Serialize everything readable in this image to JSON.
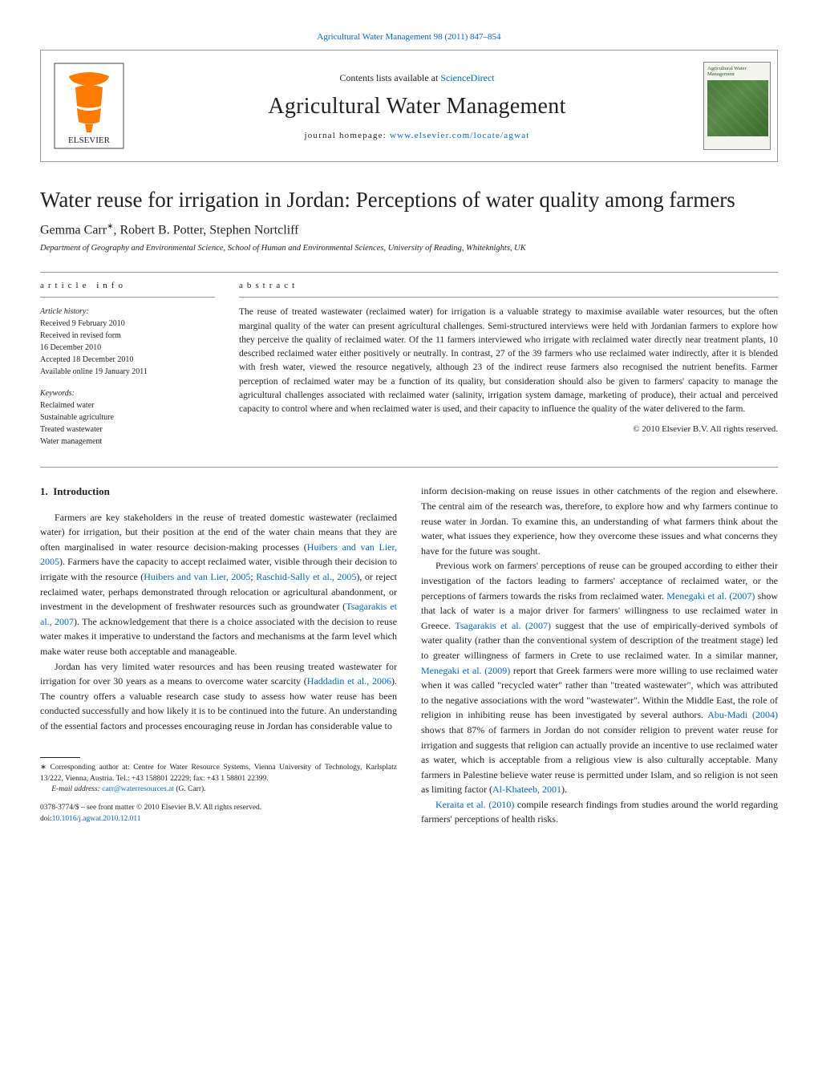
{
  "header": {
    "top_link_text": "Agricultural Water Management 98 (2011) 847–854",
    "contents_prefix": "Contents lists available at ",
    "contents_link": "ScienceDirect",
    "journal_name": "Agricultural Water Management",
    "homepage_prefix": "journal homepage: ",
    "homepage_url": "www.elsevier.com/locate/agwat",
    "cover_title": "Agricultural Water Management"
  },
  "article": {
    "title": "Water reuse for irrigation in Jordan: Perceptions of water quality among farmers",
    "authors_html": "Gemma Carr*, Robert B. Potter, Stephen Nortcliff",
    "authors": [
      {
        "name": "Gemma Carr",
        "corr": true
      },
      {
        "name": "Robert B. Potter",
        "corr": false
      },
      {
        "name": "Stephen Nortcliff",
        "corr": false
      }
    ],
    "affiliation": "Department of Geography and Environmental Science, School of Human and Environmental Sciences, University of Reading, Whiteknights, UK"
  },
  "info": {
    "header": "article info",
    "history_label": "Article history:",
    "history": [
      "Received 9 February 2010",
      "Received in revised form",
      "16 December 2010",
      "Accepted 18 December 2010",
      "Available online 19 January 2011"
    ],
    "keywords_label": "Keywords:",
    "keywords": [
      "Reclaimed water",
      "Sustainable agriculture",
      "Treated wastewater",
      "Water management"
    ]
  },
  "abstract": {
    "header": "abstract",
    "text": "The reuse of treated wastewater (reclaimed water) for irrigation is a valuable strategy to maximise available water resources, but the often marginal quality of the water can present agricultural challenges. Semi-structured interviews were held with Jordanian farmers to explore how they perceive the quality of reclaimed water. Of the 11 farmers interviewed who irrigate with reclaimed water directly near treatment plants, 10 described reclaimed water either positively or neutrally. In contrast, 27 of the 39 farmers who use reclaimed water indirectly, after it is blended with fresh water, viewed the resource negatively, although 23 of the indirect reuse farmers also recognised the nutrient benefits. Farmer perception of reclaimed water may be a function of its quality, but consideration should also be given to farmers' capacity to manage the agricultural challenges associated with reclaimed water (salinity, irrigation system damage, marketing of produce), their actual and perceived capacity to control where and when reclaimed water is used, and their capacity to influence the quality of the water delivered to the farm.",
    "copyright": "© 2010 Elsevier B.V. All rights reserved."
  },
  "body": {
    "section_number": "1.",
    "section_title": "Introduction",
    "left_col": [
      "Farmers are key stakeholders in the reuse of treated domestic wastewater (reclaimed water) for irrigation, but their position at the end of the water chain means that they are often marginalised in water resource decision-making processes (<span class=\"ref\">Huibers and van Lier, 2005</span>). Farmers have the capacity to accept reclaimed water, visible through their decision to irrigate with the resource (<span class=\"ref\">Huibers and van Lier, 2005</span>; <span class=\"ref\">Raschid-Sally et al., 2005</span>), or reject reclaimed water, perhaps demonstrated through relocation or agricultural abandonment, or investment in the development of freshwater resources such as groundwater (<span class=\"ref\">Tsagarakis et al., 2007</span>). The acknowledgement that there is a choice associated with the decision to reuse water makes it imperative to understand the factors and mechanisms at the farm level which make water reuse both acceptable and manageable.",
      "Jordan has very limited water resources and has been reusing treated wastewater for irrigation for over 30 years as a means to overcome water scarcity (<span class=\"ref\">Haddadin et al., 2006</span>). The country offers a valuable research case study to assess how water reuse has been conducted successfully and how likely it is to be continued into the future. An understanding of the essential factors and processes encouraging reuse in Jordan has considerable value to"
    ],
    "right_col": [
      "inform decision-making on reuse issues in other catchments of the region and elsewhere. The central aim of the research was, therefore, to explore how and why farmers continue to reuse water in Jordan. To examine this, an understanding of what farmers think about the water, what issues they experience, how they overcome these issues and what concerns they have for the future was sought.",
      "Previous work on farmers' perceptions of reuse can be grouped according to either their investigation of the factors leading to farmers' acceptance of reclaimed water, or the perceptions of farmers towards the risks from reclaimed water. <span class=\"ref\">Menegaki et al. (2007)</span> show that lack of water is a major driver for farmers' willingness to use reclaimed water in Greece. <span class=\"ref\">Tsagarakis et al. (2007)</span> suggest that the use of empirically-derived symbols of water quality (rather than the conventional system of description of the treatment stage) led to greater willingness of farmers in Crete to use reclaimed water. In a similar manner, <span class=\"ref\">Menegaki et al. (2009)</span> report that Greek farmers were more willing to use reclaimed water when it was called \"recycled water\" rather than \"treated wastewater\", which was attributed to the negative associations with the word \"wastewater\". Within the Middle East, the role of religion in inhibiting reuse has been investigated by several authors. <span class=\"ref\">Abu-Madi (2004)</span> shows that 87% of farmers in Jordan do not consider religion to prevent water reuse for irrigation and suggests that religion can actually provide an incentive to use reclaimed water as water, which is acceptable from a religious view is also culturally acceptable. Many farmers in Palestine believe water reuse is permitted under Islam, and so religion is not seen as limiting factor (<span class=\"ref\">Al-Khateeb, 2001</span>).",
      "<span class=\"ref\">Keraita et al. (2010)</span> compile research findings from studies around the world regarding farmers' perceptions of health risks."
    ]
  },
  "footnote": {
    "corr_marker": "∗",
    "corr_text": "Corresponding author at: Centre for Water Resource Systems, Vienna University of Technology, Karlsplatz 13/222, Vienna, Austria. Tel.: +43 158801 22229; fax: +43 1 58801 22399.",
    "email_label": "E-mail address:",
    "email": "carr@waterresources.at",
    "email_person": "(G. Carr)."
  },
  "front_matter": {
    "issn_line": "0378-3774/$ – see front matter © 2010 Elsevier B.V. All rights reserved.",
    "doi_prefix": "doi:",
    "doi": "10.1016/j.agwat.2010.12.011"
  },
  "colors": {
    "link": "#0066cc",
    "elsevier_orange": "#ff6600",
    "rule": "#999999"
  }
}
